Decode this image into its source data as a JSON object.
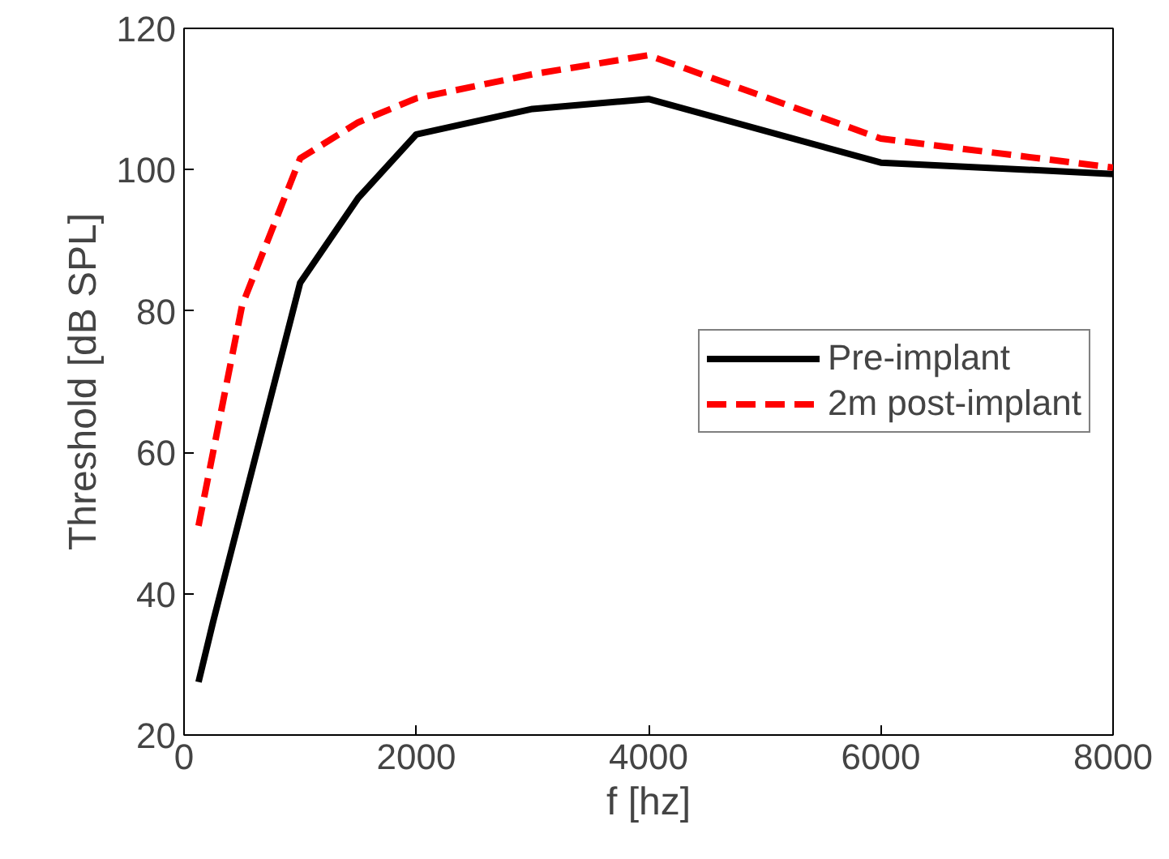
{
  "chart_data": {
    "type": "line",
    "xlabel": "f [hz]",
    "ylabel": "Threshold [dB SPL]",
    "xlim": [
      0,
      8000
    ],
    "xticks": [
      0,
      2000,
      4000,
      6000,
      8000
    ],
    "ylim": [
      20,
      120
    ],
    "yticks": [
      20,
      40,
      60,
      80,
      100,
      120
    ],
    "grid": false,
    "legend": "right",
    "series": [
      {
        "name": "Pre-implant",
        "color": "#000000",
        "line_style": "solid",
        "x": [
          125,
          250,
          500,
          1000,
          1500,
          2000,
          3000,
          4000,
          6000,
          8000
        ],
        "values": [
          27.5,
          36,
          52,
          84,
          96,
          105,
          108.6,
          110,
          101,
          99.4
        ]
      },
      {
        "name": "2m post-implant",
        "color": "#ff0000",
        "line_style": "dashed",
        "x": [
          125,
          500,
          1000,
          1500,
          2000,
          3000,
          4000,
          6000,
          8000
        ],
        "values": [
          49.6,
          80.8,
          101.6,
          106.7,
          110.1,
          113.5,
          116.2,
          104.4,
          100.3
        ]
      }
    ]
  }
}
